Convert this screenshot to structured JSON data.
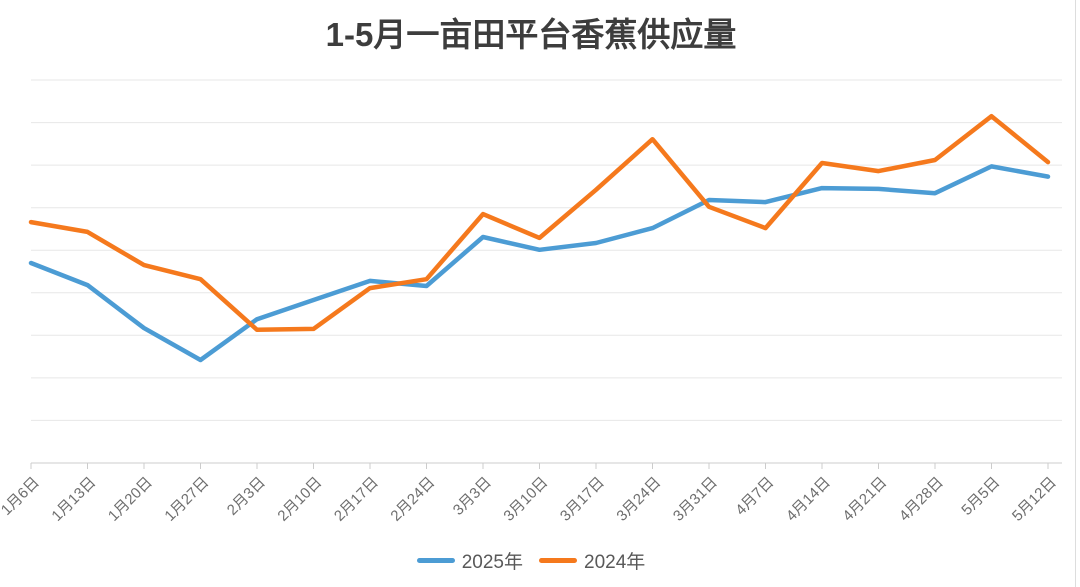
{
  "page": {
    "background": "#ffffff",
    "right_border_color": "#dddddd"
  },
  "chart_data": {
    "type": "line",
    "title": "1-5月一亩田平台香蕉供应量",
    "categories": [
      "1月6日",
      "1月13日",
      "1月20日",
      "1月27日",
      "2月3日",
      "2月10日",
      "2月17日",
      "2月24日",
      "3月3日",
      "3月10日",
      "3月17日",
      "3月24日",
      "3月31日",
      "4月7日",
      "4月14日",
      "4月21日",
      "4月28日",
      "5月5日",
      "5月12日"
    ],
    "series": [
      {
        "name": "2025年",
        "color": "#4C9CD4",
        "values": [
          4.7,
          4.18,
          3.17,
          2.42,
          3.38,
          3.83,
          4.28,
          4.16,
          5.31,
          5.01,
          5.17,
          5.52,
          6.18,
          6.13,
          6.46,
          6.44,
          6.34,
          6.97,
          6.73
        ]
      },
      {
        "name": "2024年",
        "color": "#F5791D",
        "values": [
          5.66,
          5.43,
          4.65,
          4.32,
          3.13,
          3.15,
          4.11,
          4.32,
          5.85,
          5.29,
          6.42,
          7.61,
          6.02,
          5.52,
          7.05,
          6.86,
          7.12,
          8.15,
          7.07
        ]
      }
    ],
    "xlabel": "",
    "ylabel": "",
    "ylim": [
      0,
      9
    ],
    "y_axis_labels_visible": false,
    "gridlines": "horizontal",
    "gridline_color": "#e7e7e7",
    "axis_color": "#cccccc",
    "tick_label_color": "#6e6e6e",
    "title_color": "#3d3d3d",
    "x_tick_rotation": -45,
    "legend_position": "bottom"
  }
}
